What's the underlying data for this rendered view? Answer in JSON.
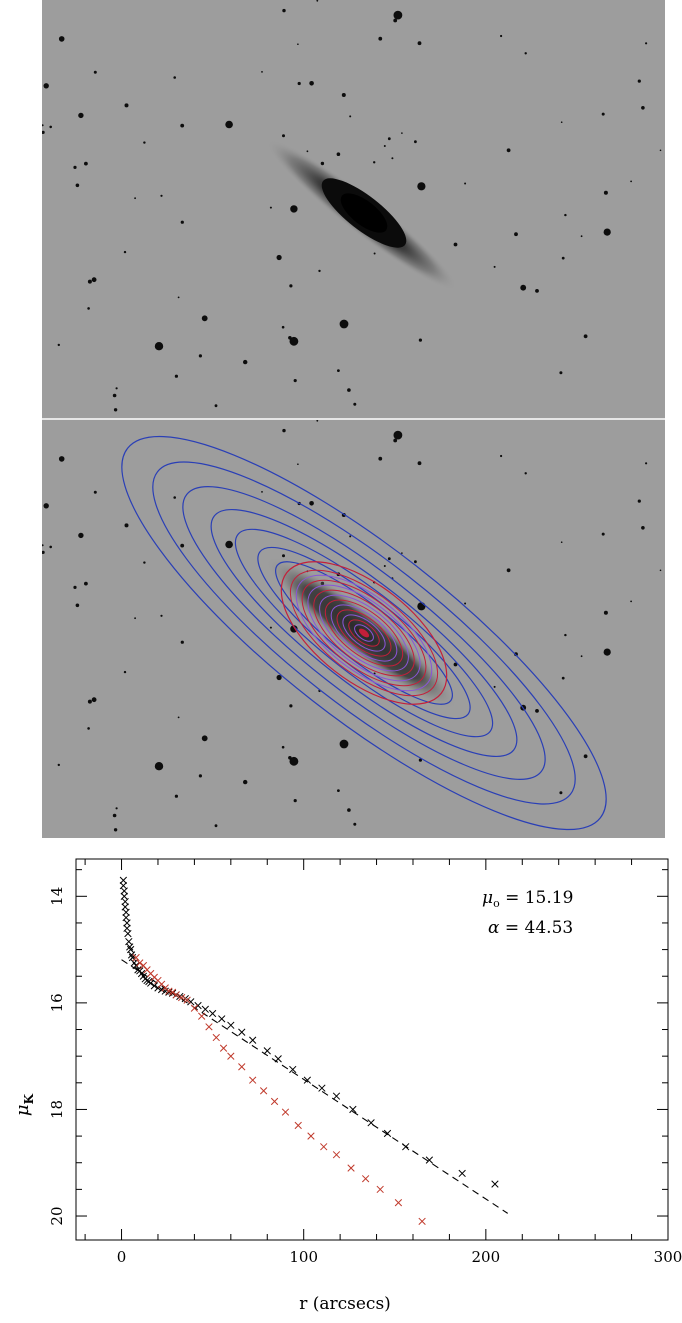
{
  "colors": {
    "sky": "#9d9d9d",
    "outer_isophote": "#2a3fb6",
    "inner_isophote": "#c41f3a",
    "core_isophote": "#8a55d8",
    "disk_points": "#000000",
    "bulge_points": "#c0392b",
    "fit_line": "#000000"
  },
  "images": {
    "top": {
      "alt": "galaxy image (edge-on disk)",
      "icon": "galaxy-image"
    },
    "bottom": {
      "alt": "galaxy image with fitted isophote contours",
      "icon": "galaxy-contour-image"
    }
  },
  "chart_data": {
    "type": "scatter",
    "xlabel": "r (arcsecs)",
    "ylabel_main": "μ",
    "ylabel_sub": "K",
    "xlim": [
      -25,
      300
    ],
    "ylim": [
      20.45,
      13.3
    ],
    "y_inverted": true,
    "xticks": [
      0,
      100,
      200,
      300
    ],
    "yticks": [
      14,
      16,
      18,
      20
    ],
    "annotations": [
      {
        "symbol": "μ",
        "sub": "o",
        "text": " = 15.19"
      },
      {
        "symbol": "α",
        "sub": "",
        "text": " = 44.53"
      }
    ],
    "fit_line": {
      "x": [
        0,
        212
      ],
      "y": [
        15.19,
        19.95
      ],
      "style": "dashed"
    },
    "series": [
      {
        "marker": "x",
        "color": "#000000",
        "x": [
          1,
          1,
          1.5,
          1.5,
          2,
          2,
          2.5,
          2.5,
          3,
          3,
          3.5,
          4,
          4.5,
          5,
          5.5,
          6,
          7,
          8,
          9,
          10,
          11,
          12,
          13,
          14,
          15,
          16,
          18,
          20,
          22,
          24,
          26,
          28,
          30,
          32,
          35,
          38,
          42,
          46,
          50,
          55,
          60,
          66,
          72,
          80,
          86,
          94,
          102,
          110,
          118,
          127,
          137,
          146,
          156,
          169,
          187,
          205
        ],
        "y": [
          13.7,
          13.8,
          13.9,
          14.0,
          14.1,
          14.2,
          14.3,
          14.4,
          14.5,
          14.6,
          14.7,
          14.85,
          14.95,
          15.0,
          15.1,
          15.15,
          15.25,
          15.3,
          15.38,
          15.4,
          15.45,
          15.5,
          15.55,
          15.58,
          15.6,
          15.63,
          15.68,
          15.72,
          15.75,
          15.78,
          15.8,
          15.82,
          15.85,
          15.88,
          15.92,
          15.98,
          16.05,
          16.12,
          16.2,
          16.3,
          16.42,
          16.55,
          16.7,
          16.9,
          17.05,
          17.25,
          17.45,
          17.6,
          17.75,
          18.0,
          18.25,
          18.45,
          18.7,
          18.95,
          19.2,
          19.4
        ]
      },
      {
        "marker": "x",
        "color": "#c0392b",
        "x": [
          8,
          10,
          12,
          14,
          16,
          18,
          20,
          22,
          24,
          26,
          28,
          30,
          33,
          36,
          40,
          44,
          48,
          52,
          56,
          60,
          66,
          72,
          78,
          84,
          90,
          97,
          104,
          111,
          118,
          126,
          134,
          142,
          152,
          165
        ],
        "y": [
          15.15,
          15.25,
          15.3,
          15.38,
          15.45,
          15.52,
          15.58,
          15.65,
          15.72,
          15.78,
          15.8,
          15.85,
          15.9,
          15.95,
          16.1,
          16.25,
          16.45,
          16.65,
          16.85,
          17.0,
          17.2,
          17.45,
          17.65,
          17.85,
          18.05,
          18.3,
          18.5,
          18.7,
          18.85,
          19.1,
          19.3,
          19.5,
          19.75,
          20.1
        ]
      }
    ]
  }
}
